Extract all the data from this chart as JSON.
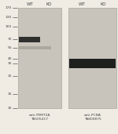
{
  "fig_bg": "#f0ece4",
  "panel_bg": "#c8c4bc",
  "ladder_marks": [
    170,
    130,
    100,
    70,
    55,
    40,
    35,
    25,
    15,
    10
  ],
  "col_labels": [
    "WT",
    "KO"
  ],
  "panel1_label1": "anti-TRMT2A",
  "panel1_label2": "TA505417",
  "panel2_label1": "anti-PCNA",
  "panel2_label2": "TA800875",
  "band1_color": "#1a1a1a",
  "faint_band_color": "#888878",
  "band2_color": "#111111",
  "label_color": "#444444",
  "tick_color": "#555555"
}
